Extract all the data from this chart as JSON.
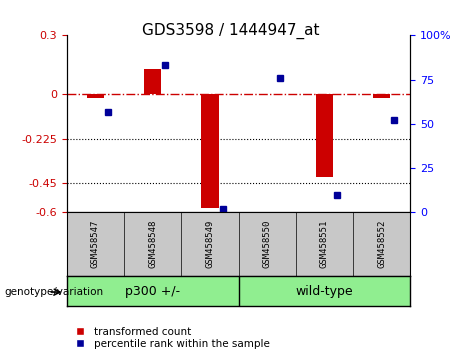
{
  "title": "GDS3598 / 1444947_at",
  "samples": [
    "GSM458547",
    "GSM458548",
    "GSM458549",
    "GSM458550",
    "GSM458551",
    "GSM458552"
  ],
  "transformed_count": [
    -0.02,
    0.13,
    -0.58,
    0.0,
    -0.42,
    -0.02
  ],
  "percentile_rank": [
    57,
    83,
    2,
    76,
    10,
    52
  ],
  "group1_label": "p300 +/-",
  "group2_label": "wild-type",
  "group_color": "#90EE90",
  "sample_box_color": "#C8C8C8",
  "ylim_left": [
    -0.6,
    0.3
  ],
  "ylim_right": [
    0,
    100
  ],
  "yticks_left": [
    0.3,
    0.0,
    -0.225,
    -0.45,
    -0.6
  ],
  "yticks_left_labels": [
    "0.3",
    "0",
    "-0.225",
    "-0.45",
    "-0.6"
  ],
  "yticks_right": [
    100,
    75,
    50,
    25,
    0
  ],
  "yticks_right_labels": [
    "100%",
    "75",
    "50",
    "25",
    "0"
  ],
  "dotted_lines": [
    -0.225,
    -0.45
  ],
  "bar_color": "#CC0000",
  "dot_color": "#000099",
  "legend_items": [
    "transformed count",
    "percentile rank within the sample"
  ],
  "genotype_label": "genotype/variation",
  "title_fontsize": 11
}
